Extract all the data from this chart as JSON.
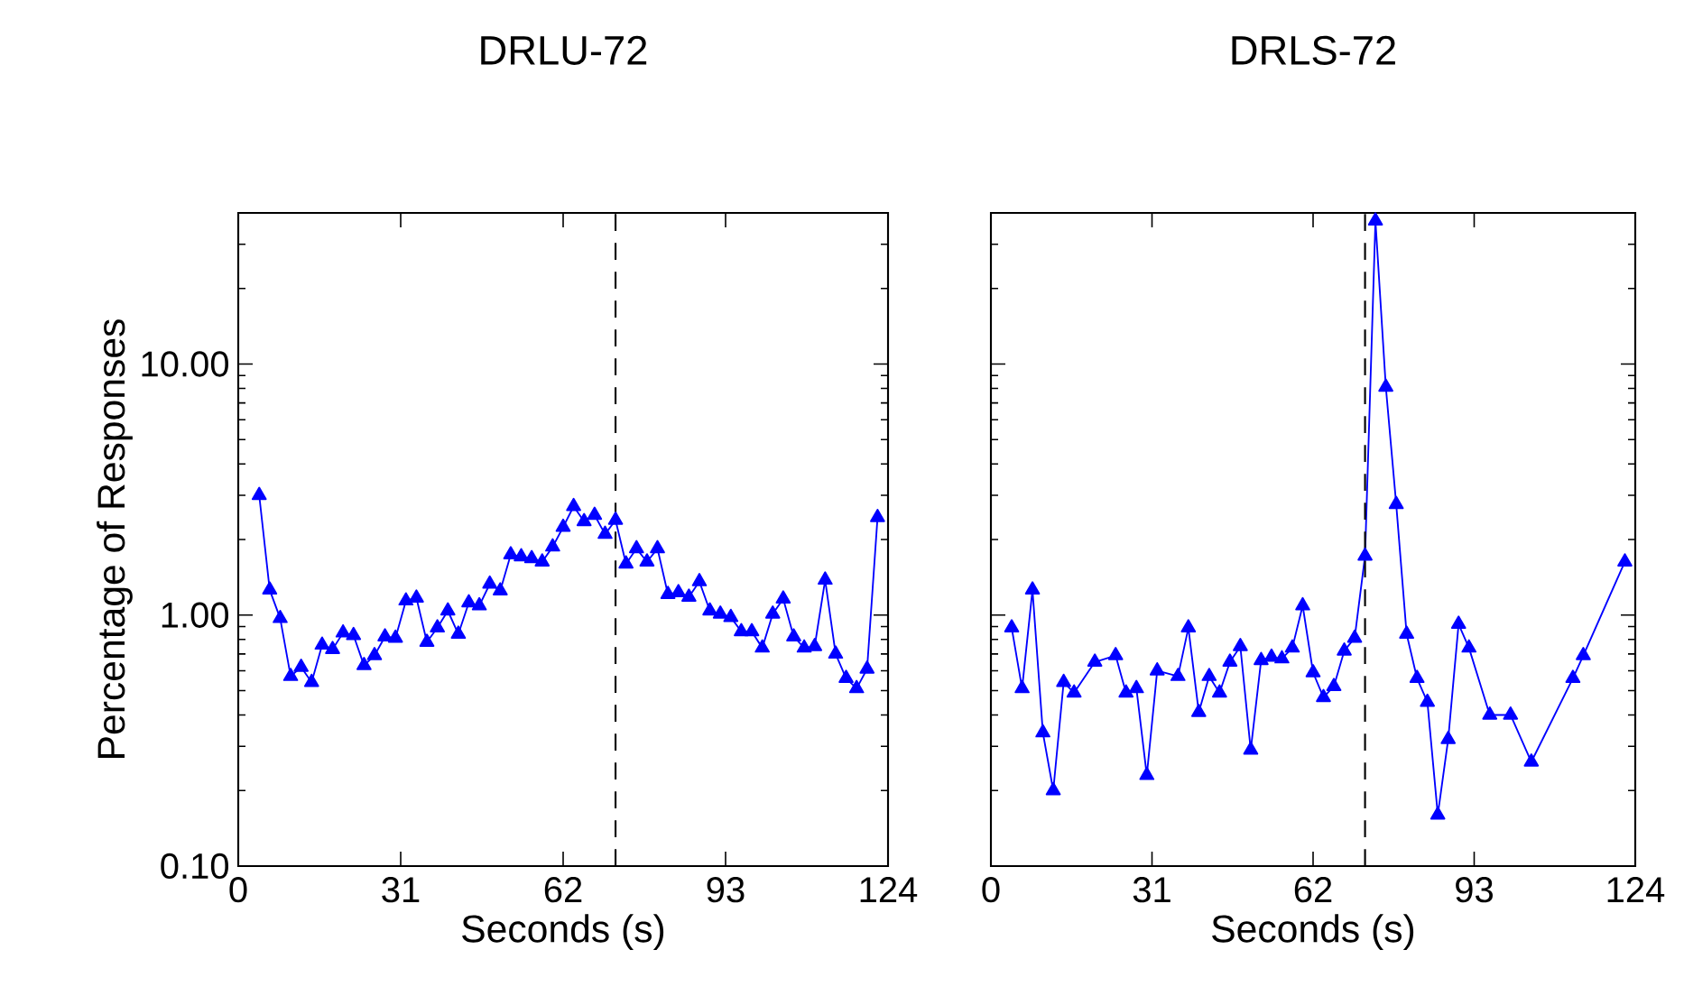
{
  "chart_data": [
    {
      "type": "line",
      "title": "DRLU-72",
      "xlabel": "Seconds (s)",
      "ylabel": "Percentage of Responses",
      "log": "y",
      "x": [
        4,
        6,
        8,
        10,
        12,
        14,
        16,
        18,
        20,
        22,
        24,
        26,
        28,
        30,
        32,
        34,
        36,
        38,
        40,
        42,
        44,
        46,
        48,
        50,
        52,
        54,
        56,
        58,
        60,
        62,
        64,
        66,
        68,
        70,
        72,
        74,
        76,
        78,
        80,
        82,
        84,
        86,
        88,
        90,
        92,
        94,
        96,
        98,
        100,
        102,
        104,
        106,
        108,
        110,
        112,
        114,
        116,
        118,
        120,
        122
      ],
      "series": [
        {
          "color": "#0000ff",
          "values": [
            3.0,
            1.26,
            0.97,
            0.57,
            0.62,
            0.54,
            0.76,
            0.73,
            0.85,
            0.83,
            0.63,
            0.69,
            0.82,
            0.81,
            1.14,
            1.17,
            0.78,
            0.89,
            1.04,
            0.84,
            1.12,
            1.09,
            1.33,
            1.25,
            1.74,
            1.71,
            1.68,
            1.63,
            1.87,
            2.24,
            2.71,
            2.36,
            2.5,
            2.1,
            2.39,
            1.6,
            1.84,
            1.63,
            1.84,
            1.21,
            1.23,
            1.18,
            1.36,
            1.04,
            1.01,
            0.98,
            0.86,
            0.86,
            0.74,
            1.01,
            1.16,
            0.82,
            0.74,
            0.75,
            1.38,
            0.7,
            0.56,
            0.51,
            0.61,
            2.45
          ]
        }
      ],
      "xlim": [
        0,
        124
      ],
      "xticks": [
        0,
        31,
        62,
        93,
        124
      ],
      "ylim": [
        0.1,
        40
      ],
      "yticks": [
        {
          "value": 0.1,
          "label": "0.10"
        },
        {
          "value": 1,
          "label": "1.00"
        },
        {
          "value": 10,
          "label": "10.00"
        }
      ],
      "ref_lines": [
        {
          "axis": "x",
          "value": 72,
          "color": "#000000",
          "line_style": "dashed"
        }
      ],
      "marker": "triangle",
      "grid": false
    },
    {
      "type": "line",
      "title": "DRLS-72",
      "xlabel": "Seconds (s)",
      "log": "y",
      "x": [
        4,
        6,
        8,
        10,
        12,
        14,
        16,
        20,
        24,
        26,
        28,
        30,
        32,
        36,
        38,
        40,
        42,
        44,
        46,
        48,
        50,
        52,
        54,
        56,
        58,
        60,
        62,
        64,
        66,
        68,
        70,
        72,
        74,
        76,
        78,
        80,
        82,
        84,
        86,
        88,
        90,
        92,
        96,
        100,
        104,
        112,
        114,
        122
      ],
      "series": [
        {
          "color": "#0000ff",
          "values": [
            0.89,
            0.51,
            1.26,
            0.34,
            0.2,
            0.54,
            0.49,
            0.65,
            0.69,
            0.49,
            0.51,
            0.23,
            0.6,
            0.57,
            0.89,
            0.41,
            0.57,
            0.49,
            0.65,
            0.75,
            0.29,
            0.66,
            0.68,
            0.67,
            0.74,
            1.09,
            0.59,
            0.47,
            0.52,
            0.72,
            0.81,
            1.72,
            37.2,
            8.1,
            2.76,
            0.84,
            0.56,
            0.45,
            0.16,
            0.32,
            0.92,
            0.74,
            0.4,
            0.4,
            0.26,
            0.56,
            0.69,
            1.63
          ]
        }
      ],
      "xlim": [
        0,
        124
      ],
      "xticks": [
        0,
        31,
        62,
        93,
        124
      ],
      "ylim": [
        0.1,
        40
      ],
      "yticks": [
        {
          "value": 0.1,
          "label": null
        },
        {
          "value": 1,
          "label": null
        },
        {
          "value": 10,
          "label": null
        }
      ],
      "ref_lines": [
        {
          "axis": "x",
          "value": 72,
          "color": "#000000",
          "line_style": "dashed"
        }
      ],
      "marker": "triangle",
      "grid": false,
      "tick_labels": "x"
    }
  ]
}
